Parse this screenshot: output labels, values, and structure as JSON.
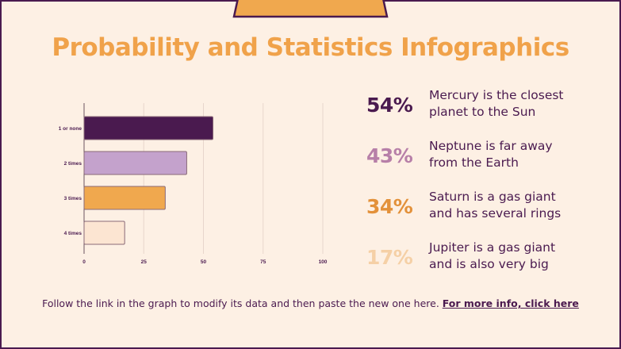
{
  "title": "Probability and Statistics Infographics",
  "colors": {
    "dark_purple": "#4a1a4f",
    "lilac": "#c4a2cc",
    "orange": "#f0a84e",
    "peach": "#fce5d2",
    "background": "#fdf0e4"
  },
  "chart_data": {
    "type": "bar",
    "orientation": "horizontal",
    "categories": [
      "1 or none",
      "2 times",
      "3 times",
      "4 times"
    ],
    "values": [
      54,
      43,
      34,
      17
    ],
    "bar_colors": [
      "#4a1a4f",
      "#c4a2cc",
      "#f0a84e",
      "#fce5d2"
    ],
    "xlim": [
      0,
      100
    ],
    "xticks": [
      "0",
      "25",
      "50",
      "75",
      "100"
    ],
    "grid": "vertical"
  },
  "stats": [
    {
      "percent": "54%",
      "text": [
        "Mercury is the closest",
        "planet to the Sun"
      ],
      "color": "#4a1a4f"
    },
    {
      "percent": "43%",
      "text": [
        "Neptune is far away",
        "from the Earth"
      ],
      "color": "#b77fa8"
    },
    {
      "percent": "34%",
      "text": [
        "Saturn is a gas giant",
        "and has several rings"
      ],
      "color": "#e3913a"
    },
    {
      "percent": "17%",
      "text": [
        "Jupiter is a gas giant",
        "and is also very big"
      ],
      "color": "#f5d0a6"
    }
  ],
  "footer": {
    "text": "Follow the link in the graph to modify its data and then paste the new one here. ",
    "link": "For more info, click here"
  }
}
